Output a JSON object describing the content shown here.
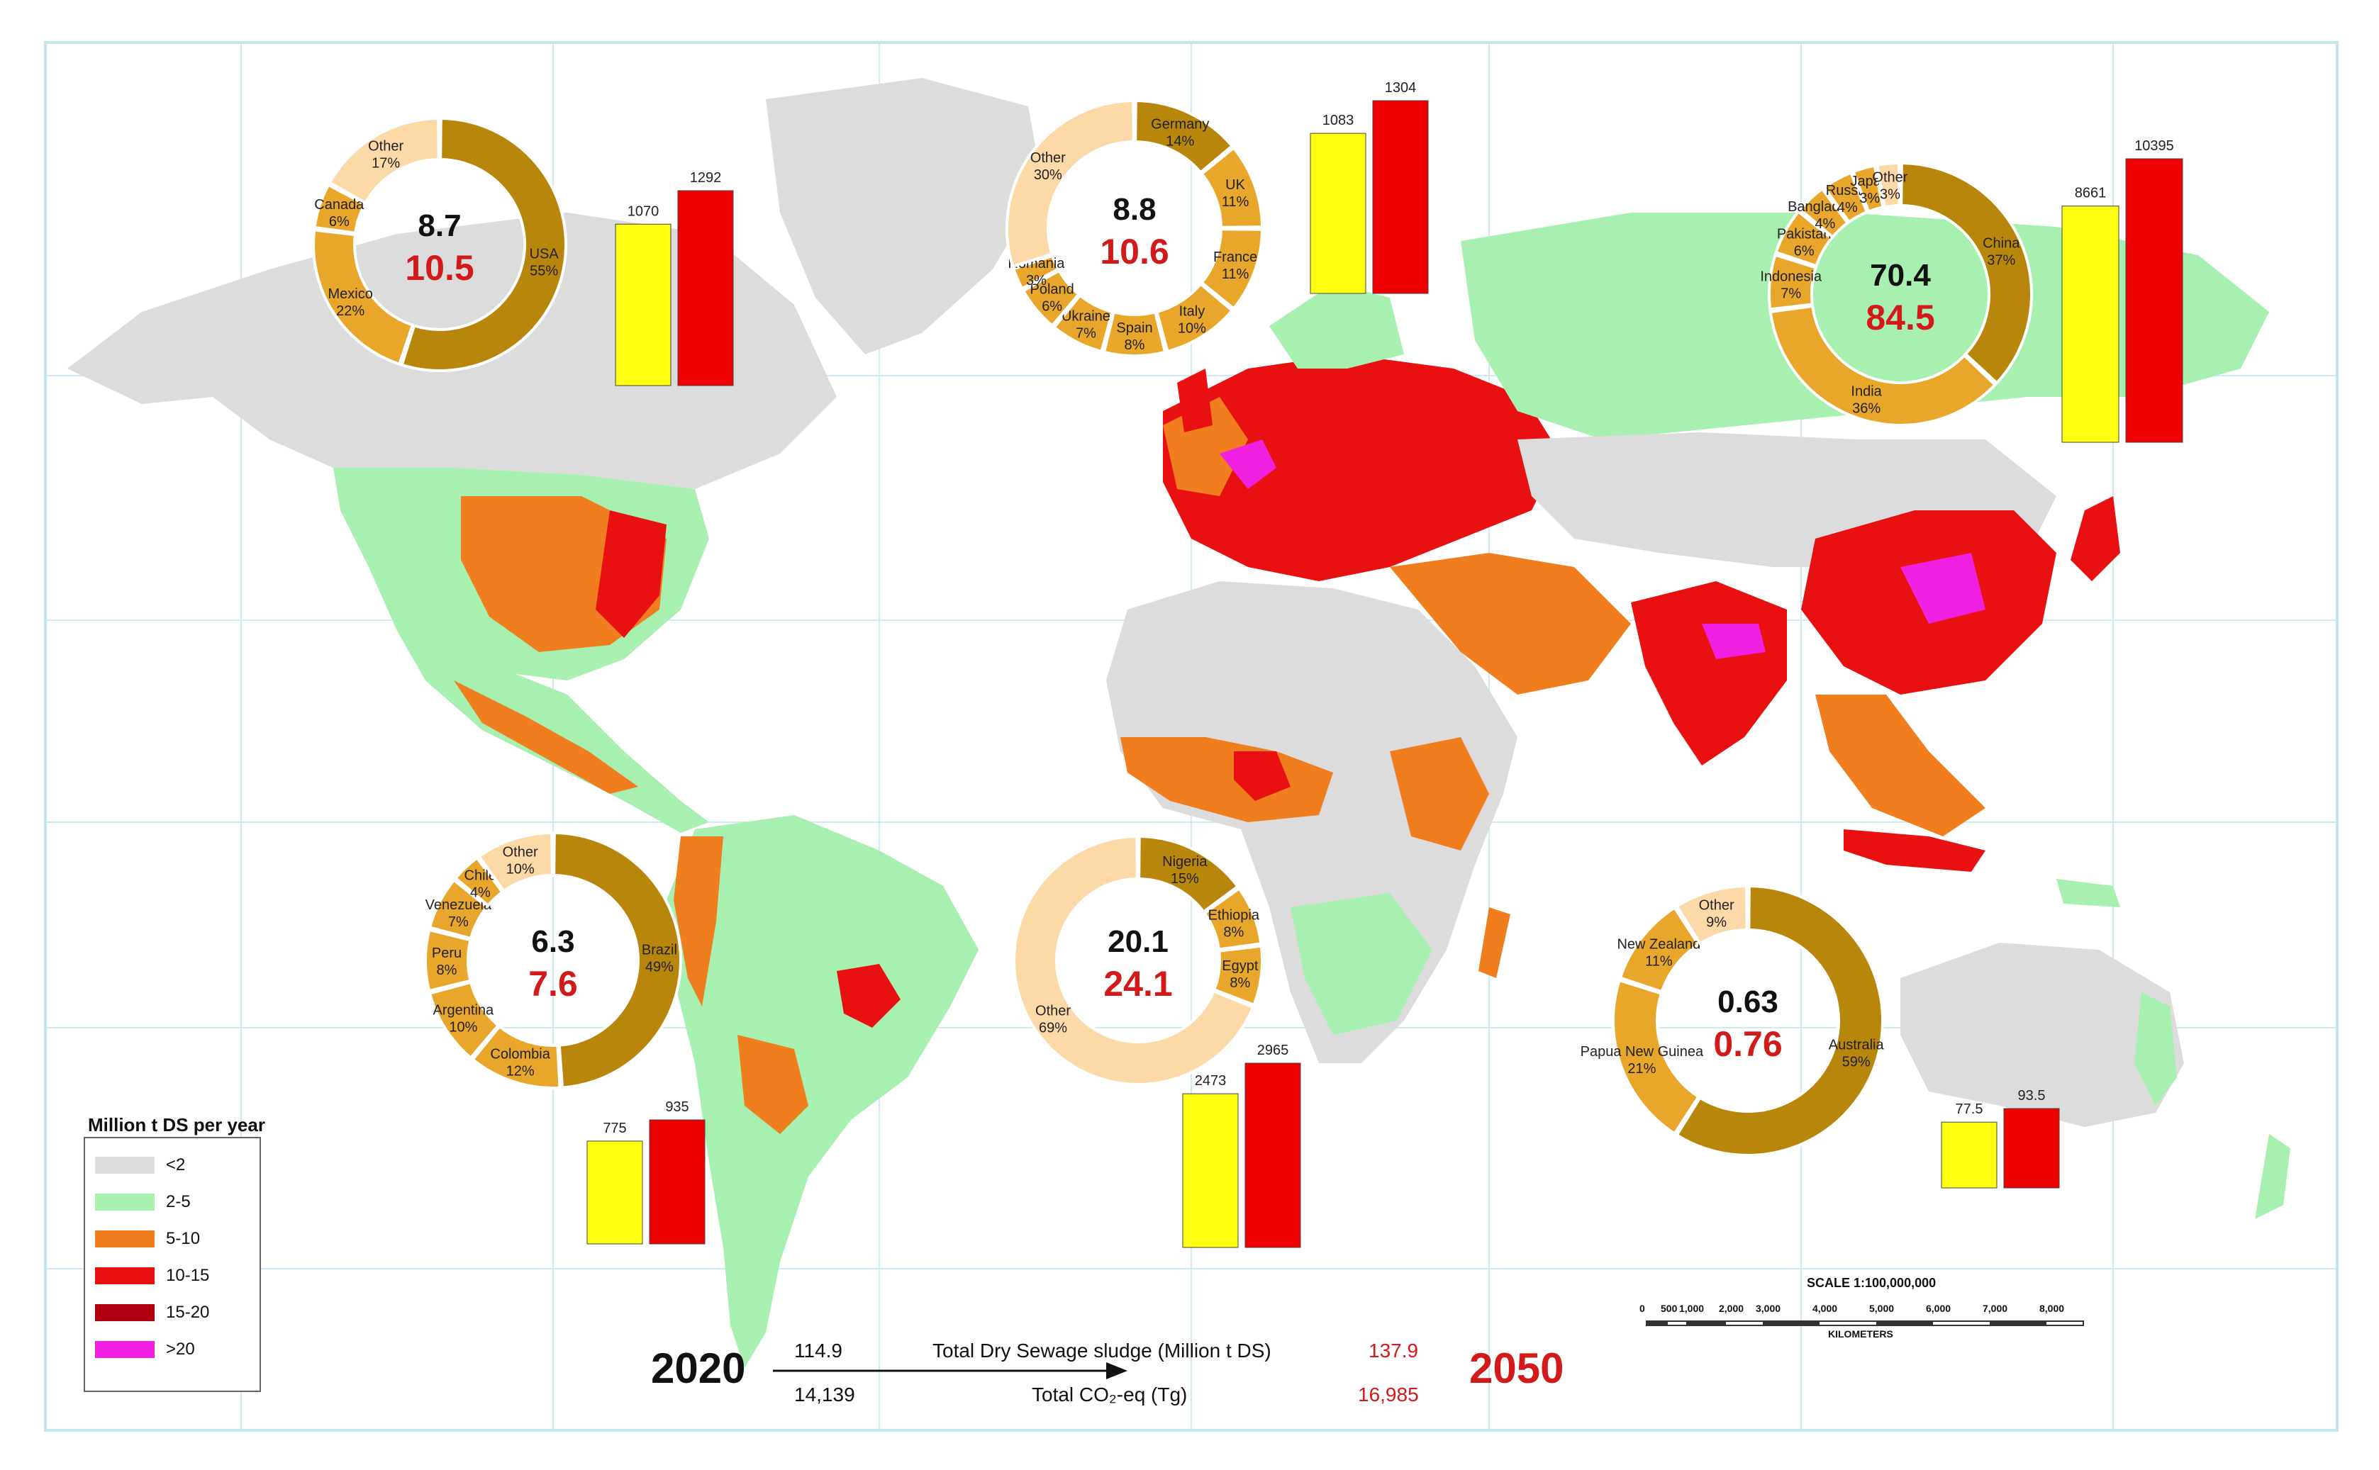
{
  "legend": {
    "title": "Million t DS per year",
    "items": [
      {
        "label": "<2",
        "color": "#dcdcdc"
      },
      {
        "label": "2-5",
        "color": "#a8f0b0"
      },
      {
        "label": "5-10",
        "color": "#f07d1e"
      },
      {
        "label": "10-15",
        "color": "#e81010"
      },
      {
        "label": "15-20",
        "color": "#b20012"
      },
      {
        "label": ">20",
        "color": "#f020e0"
      }
    ]
  },
  "colors": {
    "background": "#ffffff",
    "frame": "#bfe6ee",
    "year_2020": "#111111",
    "year_2050": "#d21a1a",
    "bar_2020": "#ffff10",
    "bar_2050": "#ee0000",
    "donut_primary": "#b8860b",
    "donut_secondary": "#e8a62a",
    "donut_other": "#fdd9a8",
    "graticule": "#bfe6ee"
  },
  "regions": [
    {
      "id": "north-america",
      "value_2020": "8.7",
      "value_2050": "10.5",
      "slices": [
        {
          "name": "USA",
          "pct": "55%",
          "value": 55
        },
        {
          "name": "Mexico",
          "pct": "22%",
          "value": 22
        },
        {
          "name": "Canada",
          "pct": "6%",
          "value": 6
        },
        {
          "name": "Other",
          "pct": "17%",
          "value": 17
        }
      ],
      "bar_values": [
        "1070",
        "1292"
      ],
      "bar_numbers": [
        1070,
        1292
      ]
    },
    {
      "id": "europe",
      "value_2020": "8.8",
      "value_2050": "10.6",
      "slices": [
        {
          "name": "Germany",
          "pct": "14%",
          "value": 14
        },
        {
          "name": "UK",
          "pct": "11%",
          "value": 11
        },
        {
          "name": "France",
          "pct": "11%",
          "value": 11
        },
        {
          "name": "Italy",
          "pct": "10%",
          "value": 10
        },
        {
          "name": "Spain",
          "pct": "8%",
          "value": 8
        },
        {
          "name": "Ukraine",
          "pct": "7%",
          "value": 7
        },
        {
          "name": "Poland",
          "pct": "6%",
          "value": 6
        },
        {
          "name": "Romania",
          "pct": "3%",
          "value": 3
        },
        {
          "name": "Other",
          "pct": "30%",
          "value": 30
        }
      ],
      "bar_values": [
        "1083",
        "1304"
      ],
      "bar_numbers": [
        1083,
        1304
      ]
    },
    {
      "id": "asia",
      "value_2020": "70.4",
      "value_2050": "84.5",
      "slices": [
        {
          "name": "China",
          "pct": "37%",
          "value": 37
        },
        {
          "name": "India",
          "pct": "36%",
          "value": 36
        },
        {
          "name": "Indonesia",
          "pct": "7%",
          "value": 7
        },
        {
          "name": "Pakistan",
          "pct": "6%",
          "value": 6
        },
        {
          "name": "Bangladesh",
          "pct": "4%",
          "value": 4
        },
        {
          "name": "Russia",
          "pct": "4%",
          "value": 4
        },
        {
          "name": "Japan",
          "pct": "3%",
          "value": 3
        },
        {
          "name": "Other",
          "pct": "3%",
          "value": 3
        }
      ],
      "bar_values": [
        "8661",
        "10395"
      ],
      "bar_numbers": [
        8661,
        10395
      ]
    },
    {
      "id": "south-america",
      "value_2020": "6.3",
      "value_2050": "7.6",
      "slices": [
        {
          "name": "Brazil",
          "pct": "49%",
          "value": 49
        },
        {
          "name": "Colombia",
          "pct": "12%",
          "value": 12
        },
        {
          "name": "Argentina",
          "pct": "10%",
          "value": 10
        },
        {
          "name": "Peru",
          "pct": "8%",
          "value": 8
        },
        {
          "name": "Venezuela",
          "pct": "7%",
          "value": 7
        },
        {
          "name": "Chile",
          "pct": "4%",
          "value": 4
        },
        {
          "name": "Other",
          "pct": "10%",
          "value": 10
        }
      ],
      "bar_values": [
        "775",
        "935"
      ],
      "bar_numbers": [
        775,
        935
      ]
    },
    {
      "id": "africa",
      "value_2020": "20.1",
      "value_2050": "24.1",
      "slices": [
        {
          "name": "Nigeria",
          "pct": "15%",
          "value": 15
        },
        {
          "name": "Ethiopia",
          "pct": "8%",
          "value": 8
        },
        {
          "name": "Egypt",
          "pct": "8%",
          "value": 8
        },
        {
          "name": "Other",
          "pct": "69%",
          "value": 69
        }
      ],
      "bar_values": [
        "2473",
        "2965"
      ],
      "bar_numbers": [
        2473,
        2965
      ]
    },
    {
      "id": "oceania",
      "value_2020": "0.63",
      "value_2050": "0.76",
      "slices": [
        {
          "name": "Australia",
          "pct": "59%",
          "value": 59
        },
        {
          "name": "Papua New Guinea",
          "pct": "21%",
          "value": 21
        },
        {
          "name": "New Zealand",
          "pct": "11%",
          "value": 11
        },
        {
          "name": "Other",
          "pct": "9%",
          "value": 9
        }
      ],
      "bar_values": [
        "77.5",
        "93.5"
      ],
      "bar_numbers": [
        77.5,
        93.5
      ]
    }
  ],
  "summary": {
    "year_start": "2020",
    "year_end": "2050",
    "sludge_label": "Total Dry Sewage sludge (Million t DS)",
    "sludge_2020": "114.9",
    "sludge_2050": "137.9",
    "co2_label": "Total CO₂-eq (Tg)",
    "co2_2020": "14,139",
    "co2_2050": "16,985"
  },
  "scale": {
    "title": "SCALE 1:100,000,000",
    "ticks": [
      "0",
      "500",
      "1,000",
      "2,000",
      "3,000",
      "4,000",
      "5,000",
      "6,000",
      "7,000",
      "8,000"
    ],
    "unit": "KILOMETERS"
  }
}
